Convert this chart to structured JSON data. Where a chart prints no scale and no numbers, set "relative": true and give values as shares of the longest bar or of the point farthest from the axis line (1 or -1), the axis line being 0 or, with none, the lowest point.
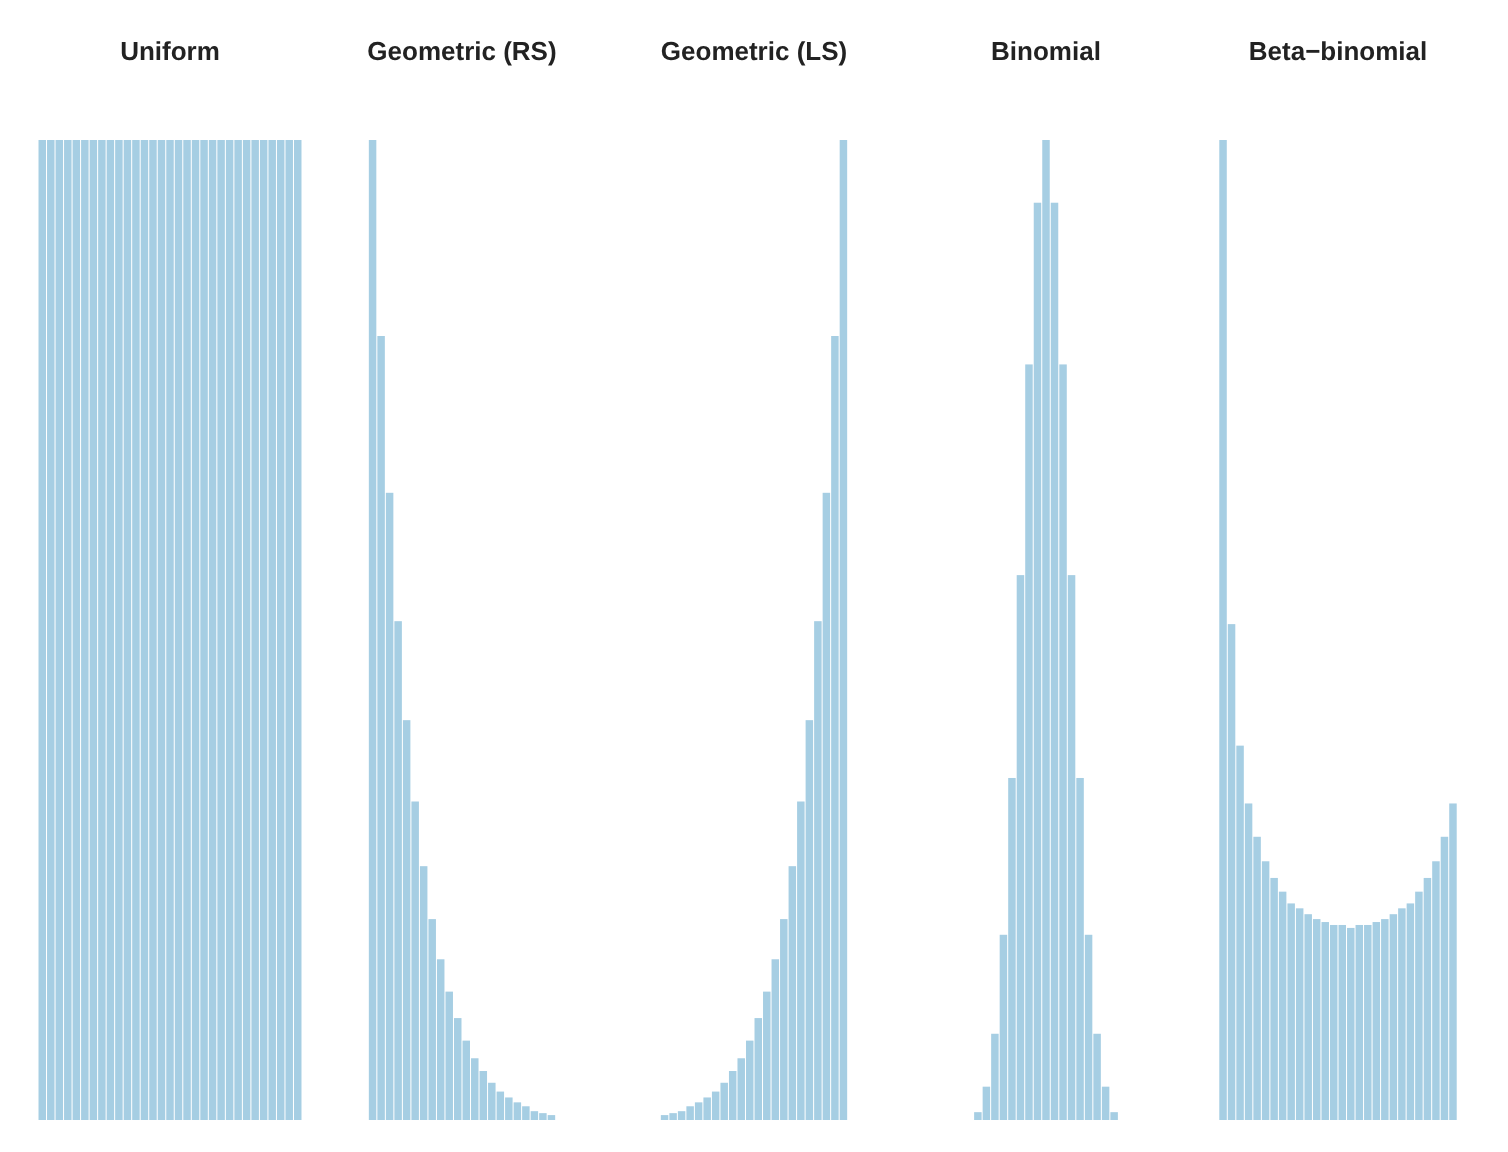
{
  "chart_data": [
    {
      "type": "bar",
      "relative": true,
      "title": "Uniform",
      "color": "#a6cee3",
      "categories": [
        null,
        null,
        null,
        null,
        null,
        null,
        null,
        null,
        null,
        null,
        null,
        null,
        null,
        null,
        null,
        null,
        null,
        null,
        null,
        null,
        null,
        null,
        null,
        null,
        null,
        null,
        null,
        null,
        null,
        null,
        null
      ],
      "values": [
        1,
        1,
        1,
        1,
        1,
        1,
        1,
        1,
        1,
        1,
        1,
        1,
        1,
        1,
        1,
        1,
        1,
        1,
        1,
        1,
        1,
        1,
        1,
        1,
        1,
        1,
        1,
        1,
        1,
        1,
        1
      ]
    },
    {
      "type": "bar",
      "relative": true,
      "title": "Geometric (RS)",
      "color": "#a6cee3",
      "categories": [
        null,
        null,
        null,
        null,
        null,
        null,
        null,
        null,
        null,
        null,
        null,
        null,
        null,
        null,
        null,
        null,
        null,
        null,
        null,
        null,
        null,
        null
      ],
      "values": [
        1,
        0.8,
        0.64,
        0.509,
        0.408,
        0.325,
        0.259,
        0.205,
        0.164,
        0.131,
        0.104,
        0.081,
        0.063,
        0.05,
        0.038,
        0.029,
        0.023,
        0.018,
        0.014,
        0.009,
        0.007,
        0.005
      ]
    },
    {
      "type": "bar",
      "relative": true,
      "title": "Geometric (LS)",
      "color": "#a6cee3",
      "categories": [
        null,
        null,
        null,
        null,
        null,
        null,
        null,
        null,
        null,
        null,
        null,
        null,
        null,
        null,
        null,
        null,
        null,
        null,
        null,
        null,
        null,
        null
      ],
      "values": [
        0.005,
        0.007,
        0.009,
        0.014,
        0.018,
        0.023,
        0.029,
        0.038,
        0.05,
        0.063,
        0.081,
        0.104,
        0.131,
        0.164,
        0.205,
        0.259,
        0.325,
        0.408,
        0.509,
        0.64,
        0.8,
        1
      ]
    },
    {
      "type": "bar",
      "relative": true,
      "title": "Binomial",
      "color": "#a6cee3",
      "categories": [
        null,
        null,
        null,
        null,
        null,
        null,
        null,
        null,
        null,
        null,
        null,
        null,
        null,
        null,
        null,
        null,
        null
      ],
      "values": [
        0.008,
        0.034,
        0.088,
        0.189,
        0.349,
        0.556,
        0.771,
        0.936,
        1,
        0.936,
        0.771,
        0.556,
        0.349,
        0.189,
        0.088,
        0.034,
        0.008
      ]
    },
    {
      "type": "bar",
      "relative": true,
      "title": "Beta−binomial",
      "color": "#a6cee3",
      "categories": [
        null,
        null,
        null,
        null,
        null,
        null,
        null,
        null,
        null,
        null,
        null,
        null,
        null,
        null,
        null,
        null,
        null,
        null,
        null,
        null,
        null,
        null,
        null,
        null,
        null,
        null,
        null,
        null
      ],
      "values": [
        1,
        0.506,
        0.382,
        0.323,
        0.289,
        0.264,
        0.247,
        0.233,
        0.221,
        0.216,
        0.21,
        0.205,
        0.202,
        0.199,
        0.199,
        0.196,
        0.199,
        0.199,
        0.202,
        0.205,
        0.21,
        0.216,
        0.221,
        0.233,
        0.247,
        0.264,
        0.289,
        0.323
      ]
    }
  ]
}
